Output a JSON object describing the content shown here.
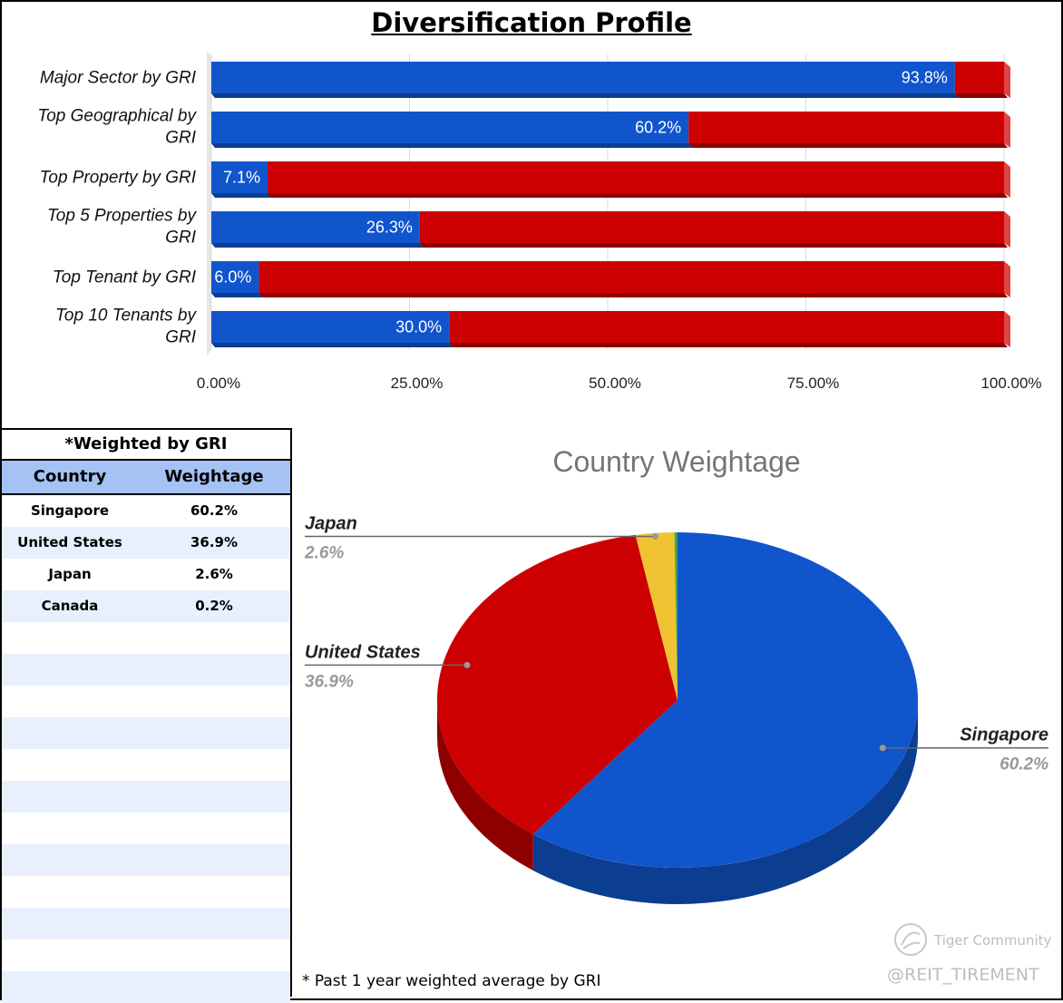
{
  "title": "Diversification Profile",
  "colors": {
    "blue": "#1155cc",
    "red": "#cc0000",
    "yellow": "#f1c232",
    "green": "#38a550"
  },
  "chart_data": [
    {
      "type": "bar",
      "orientation": "horizontal",
      "stacked": true,
      "title": "Diversification Profile",
      "categories": [
        "Major Sector by GRI",
        "Top Geographical by GRI",
        "Top Property by GRI",
        "Top 5 Properties by GRI",
        "Top Tenant by GRI",
        "Top 10 Tenants by GRI"
      ],
      "series": [
        {
          "values": [
            93.8,
            60.2,
            7.1,
            26.3,
            6.0,
            30.0
          ],
          "labels": [
            "93.8%",
            "60.2%",
            "7.1%",
            "26.3%",
            "6.0%",
            "30.0%"
          ]
        },
        {
          "values": [
            6.2,
            39.8,
            92.9,
            73.7,
            94.0,
            70.0
          ]
        }
      ],
      "xlim": [
        0,
        100
      ],
      "xticks": [
        "0.00%",
        "25.00%",
        "50.00%",
        "75.00%",
        "100.00%"
      ],
      "grid": true,
      "legend": "none"
    },
    {
      "type": "pie",
      "title": "Country Weightage",
      "categories": [
        "Singapore",
        "United States",
        "Japan",
        "Canada"
      ],
      "values": [
        60.2,
        36.9,
        2.6,
        0.2
      ],
      "labels": [
        {
          "name": "Singapore",
          "pct": "60.2%"
        },
        {
          "name": "United States",
          "pct": "36.9%"
        },
        {
          "name": "Japan",
          "pct": "2.6%"
        }
      ],
      "legend": "labels"
    }
  ],
  "table": {
    "title": "*Weighted by GRI",
    "headers": [
      "Country",
      "Weightage"
    ],
    "rows": [
      [
        "Singapore",
        "60.2%"
      ],
      [
        "United States",
        "36.9%"
      ],
      [
        "Japan",
        "2.6%"
      ],
      [
        "Canada",
        "0.2%"
      ]
    ]
  },
  "footnote": "* Past 1 year weighted average by GRI",
  "watermark": {
    "brand": "Tiger Community",
    "handle": "@REIT_TIREMENT"
  }
}
